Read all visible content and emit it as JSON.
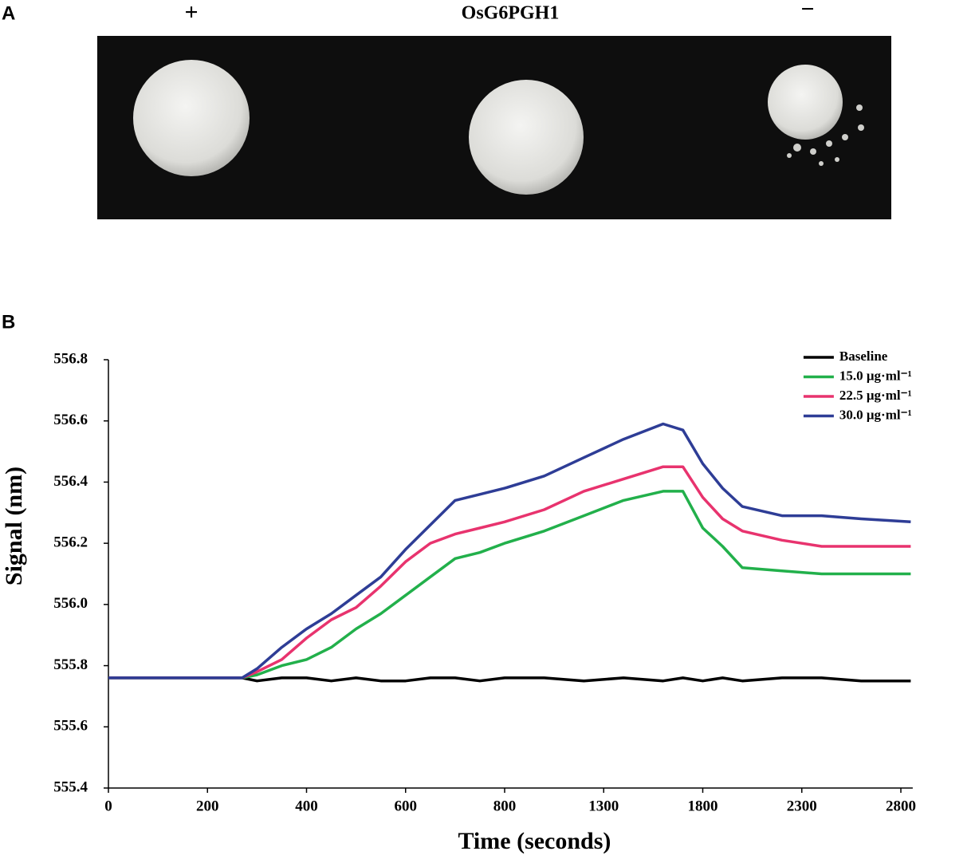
{
  "panels": [
    "A",
    "B"
  ],
  "photo": {
    "labels": [
      "+",
      "OsG6PGH1",
      "−"
    ]
  },
  "chart_data": {
    "type": "line",
    "xlabel": "Time (seconds)",
    "ylabel": "Signal (nm)",
    "x": [
      0,
      100,
      200,
      270,
      300,
      350,
      400,
      450,
      500,
      550,
      600,
      650,
      700,
      750,
      800,
      1000,
      1200,
      1400,
      1600,
      1700,
      1800,
      1900,
      2000,
      2200,
      2400,
      2600,
      2850
    ],
    "series": [
      {
        "name": "Baseline",
        "color": "#000000",
        "values": [
          555.76,
          555.76,
          555.76,
          555.76,
          555.75,
          555.76,
          555.76,
          555.75,
          555.76,
          555.75,
          555.75,
          555.76,
          555.76,
          555.75,
          555.76,
          555.76,
          555.75,
          555.76,
          555.75,
          555.76,
          555.75,
          555.76,
          555.75,
          555.76,
          555.76,
          555.75,
          555.75
        ]
      },
      {
        "name": "15.0 μg·ml⁻¹",
        "color": "#22b04b",
        "values": [
          555.76,
          555.76,
          555.76,
          555.76,
          555.77,
          555.8,
          555.82,
          555.86,
          555.92,
          555.97,
          556.03,
          556.09,
          556.15,
          556.17,
          556.2,
          556.24,
          556.29,
          556.34,
          556.37,
          556.37,
          556.25,
          556.19,
          556.12,
          556.11,
          556.1,
          556.1,
          556.1
        ]
      },
      {
        "name": "22.5 μg·ml⁻¹",
        "color": "#e8336e",
        "values": [
          555.76,
          555.76,
          555.76,
          555.76,
          555.78,
          555.82,
          555.89,
          555.95,
          555.99,
          556.06,
          556.14,
          556.2,
          556.23,
          556.25,
          556.27,
          556.31,
          556.37,
          556.41,
          556.45,
          556.45,
          556.35,
          556.28,
          556.24,
          556.21,
          556.19,
          556.19,
          556.19
        ]
      },
      {
        "name": "30.0 μg·ml⁻¹",
        "color": "#2e3d96",
        "values": [
          555.76,
          555.76,
          555.76,
          555.76,
          555.79,
          555.86,
          555.92,
          555.97,
          556.03,
          556.09,
          556.18,
          556.26,
          556.34,
          556.36,
          556.38,
          556.42,
          556.48,
          556.54,
          556.59,
          556.57,
          556.46,
          556.38,
          556.32,
          556.29,
          556.29,
          556.28,
          556.27
        ]
      }
    ],
    "xlim": [
      0,
      2860
    ],
    "xticks": [
      0,
      200,
      400,
      600,
      800,
      1300,
      1800,
      2300,
      2800
    ],
    "ylim": [
      555.4,
      556.8
    ],
    "yticks": [
      555.4,
      555.6,
      555.8,
      {
        "value": 556,
        "label": "556.0"
      },
      556.2,
      556.4,
      556.6,
      556.8
    ],
    "legend": "upper right"
  }
}
